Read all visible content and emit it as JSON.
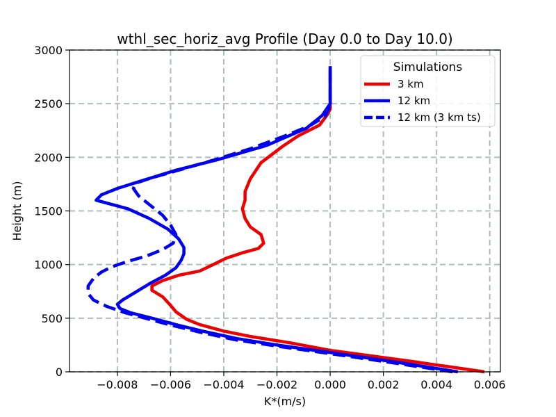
{
  "chart_data": {
    "type": "line",
    "title": "wthl_sec_horiz_avg Profile (Day 0.0 to Day 10.0)",
    "xlabel": "K*(m/s)",
    "ylabel": "Height (m)",
    "xlim": [
      -0.0098,
      0.0064
    ],
    "ylim": [
      0,
      3000
    ],
    "grid": true,
    "xticks": [
      -0.008,
      -0.006,
      -0.004,
      -0.002,
      0.0,
      0.002,
      0.004,
      0.006
    ],
    "xtick_labels": [
      "−0.008",
      "−0.006",
      "−0.004",
      "−0.002",
      "0.000",
      "0.002",
      "0.004",
      "0.006"
    ],
    "yticks": [
      0,
      500,
      1000,
      1500,
      2000,
      2500,
      3000
    ],
    "ytick_labels": [
      "0",
      "500",
      "1000",
      "1500",
      "2000",
      "2500",
      "3000"
    ],
    "legend": {
      "title": "Simulations",
      "location": "top-right"
    },
    "series": [
      {
        "name": "3 km",
        "color": "#ee0000",
        "dash": "solid",
        "x": [
          0.0058,
          0.003,
          0.0,
          -0.0015,
          -0.003,
          -0.004,
          -0.0049,
          -0.0054,
          -0.0058,
          -0.006,
          -0.0063,
          -0.0067,
          -0.0067,
          -0.0063,
          -0.0057,
          -0.0049,
          -0.0044,
          -0.0039,
          -0.0033,
          -0.0027,
          -0.0025,
          -0.0026,
          -0.003,
          -0.0032,
          -0.0033,
          -0.0032,
          -0.0032,
          -0.003,
          -0.0026,
          -0.0018,
          -0.0012,
          -0.0004,
          -0.0001,
          0.0,
          0.0,
          0.0,
          0.0
        ],
        "y": [
          0,
          100,
          200,
          270,
          330,
          380,
          440,
          490,
          560,
          620,
          700,
          760,
          800,
          850,
          900,
          940,
          1000,
          1060,
          1110,
          1150,
          1200,
          1280,
          1350,
          1430,
          1520,
          1600,
          1680,
          1800,
          1950,
          2100,
          2200,
          2300,
          2400,
          2450,
          2500,
          2700,
          2850
        ]
      },
      {
        "name": "12 km",
        "color": "#0000ee",
        "dash": "solid",
        "x": [
          0.0048,
          0.0025,
          0.0,
          -0.002,
          -0.0035,
          -0.0048,
          -0.0058,
          -0.0067,
          -0.0075,
          -0.0079,
          -0.008,
          -0.0078,
          -0.0074,
          -0.0068,
          -0.0062,
          -0.0058,
          -0.0056,
          -0.0055,
          -0.0055,
          -0.0057,
          -0.0061,
          -0.0068,
          -0.0076,
          -0.0088,
          -0.0086,
          -0.008,
          -0.0071,
          -0.0058,
          -0.0042,
          -0.0024,
          -0.0009,
          -0.0003,
          0.0,
          0.0,
          0.0,
          0.0
        ],
        "y": [
          0,
          90,
          180,
          250,
          310,
          380,
          440,
          500,
          550,
          590,
          630,
          670,
          730,
          820,
          900,
          970,
          1040,
          1100,
          1160,
          1240,
          1330,
          1430,
          1520,
          1600,
          1650,
          1710,
          1780,
          1880,
          1980,
          2110,
          2270,
          2390,
          2500,
          2600,
          2700,
          2850
        ]
      },
      {
        "name": "12 km (3 km ts)",
        "color": "#0000ee",
        "dash": "dashed",
        "x": [
          0.0046,
          0.0022,
          0.0,
          -0.002,
          -0.0036,
          -0.0049,
          -0.0059,
          -0.0068,
          -0.0077,
          -0.0084,
          -0.0089,
          -0.0091,
          -0.0091,
          -0.0089,
          -0.0086,
          -0.0082,
          -0.0076,
          -0.0069,
          -0.0063,
          -0.0059,
          -0.0058,
          -0.006,
          -0.0063,
          -0.0068,
          -0.0072,
          -0.0074,
          -0.0073,
          -0.0067,
          -0.0057,
          -0.0043,
          -0.003,
          -0.0018,
          -0.0008,
          -0.0002,
          0.0,
          0.0,
          0.0
        ],
        "y": [
          0,
          90,
          170,
          240,
          300,
          370,
          430,
          490,
          550,
          610,
          670,
          730,
          800,
          870,
          930,
          980,
          1030,
          1080,
          1140,
          1200,
          1280,
          1370,
          1460,
          1560,
          1640,
          1710,
          1760,
          1810,
          1880,
          1980,
          2080,
          2190,
          2290,
          2380,
          2480,
          2650,
          2850
        ]
      }
    ]
  }
}
